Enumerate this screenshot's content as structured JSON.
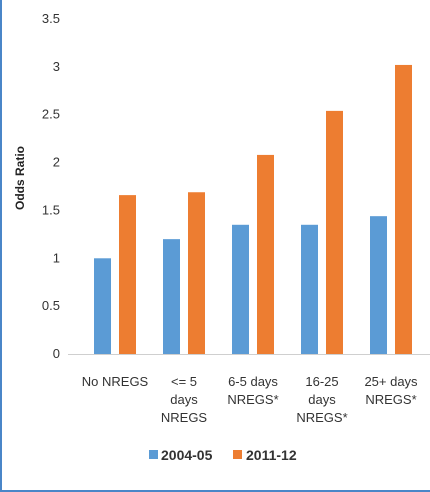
{
  "chart_data": {
    "type": "bar",
    "title": "",
    "xlabel": "",
    "ylabel": "Odds Ratio",
    "ylim": [
      0,
      3.5
    ],
    "yticks": [
      "0",
      "0.5",
      "1",
      "1.5",
      "2",
      "2.5",
      "3",
      "3.5"
    ],
    "categories": [
      [
        "No NREGS"
      ],
      [
        "<= 5",
        "days",
        "NREGS"
      ],
      [
        "6-5 days",
        "NREGS*"
      ],
      [
        "16-25",
        "days",
        "NREGS*"
      ],
      [
        "25+ days",
        "NREGS*"
      ]
    ],
    "series": [
      {
        "name": "2004-05",
        "color": "#5b9bd5",
        "values": [
          1.0,
          1.2,
          1.35,
          1.35,
          1.44
        ]
      },
      {
        "name": "2011-12",
        "color": "#ed7d31",
        "values": [
          1.66,
          1.69,
          2.08,
          2.54,
          3.02
        ]
      }
    ],
    "grid": false,
    "legend": "bottom"
  }
}
